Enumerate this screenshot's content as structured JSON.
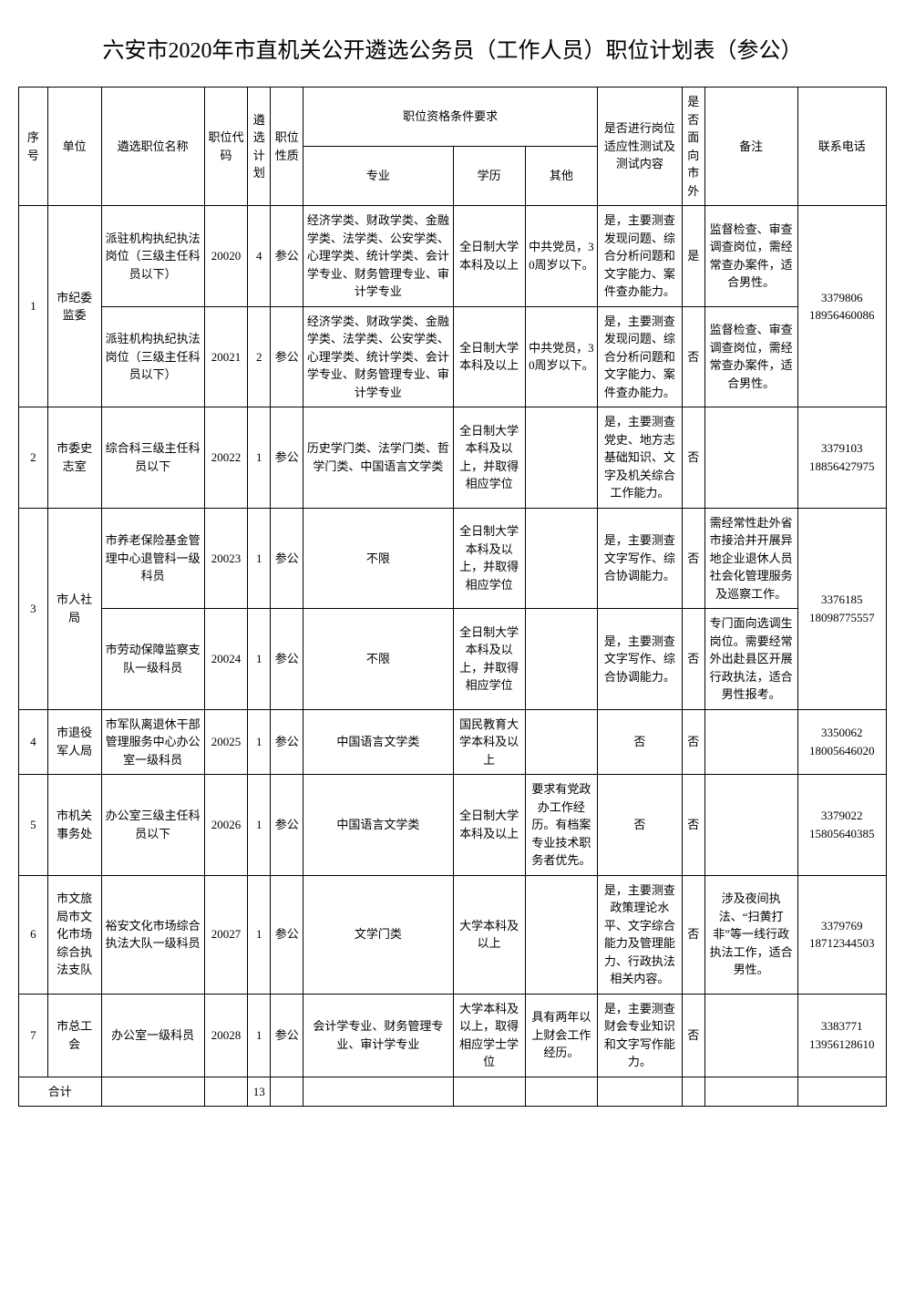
{
  "title": "六安市2020年市直机关公开遴选公务员（工作人员）职位计划表（参公）",
  "headers": {
    "seq": "序号",
    "unit": "单位",
    "position": "遴选职位名称",
    "code": "职位代码",
    "plan": "遴选计划",
    "nature": "职位性质",
    "qualGroup": "职位资格条件要求",
    "major": "专业",
    "edu": "学历",
    "other": "其他",
    "test": "是否进行岗位适应性测试及测试内容",
    "external": "是否面向市外",
    "remark": "备注",
    "phone": "联系电话"
  },
  "rows": [
    {
      "seq": "1",
      "unit": "市纪委监委",
      "unitRowspan": 2,
      "position": "派驻机构执纪执法岗位（三级主任科员以下）",
      "code": "20020",
      "plan": "4",
      "nature": "参公",
      "major": "经济学类、财政学类、金融学类、法学类、公安学类、心理学类、统计学类、会计学专业、财务管理专业、审计学专业",
      "edu": "全日制大学本科及以上",
      "other": "中共党员，30周岁以下。",
      "test": "是，主要测查发现问题、综合分析问题和文字能力、案件查办能力。",
      "external": "是",
      "remark": "监督检查、审查调查岗位，需经常查办案件，适合男性。",
      "phone": "3379806\n18956460086",
      "phoneRowspan": 2
    },
    {
      "position": "派驻机构执纪执法岗位（三级主任科员以下）",
      "code": "20021",
      "plan": "2",
      "nature": "参公",
      "major": "经济学类、财政学类、金融学类、法学类、公安学类、心理学类、统计学类、会计学专业、财务管理专业、审计学专业",
      "edu": "全日制大学本科及以上",
      "other": "中共党员，30周岁以下。",
      "test": "是，主要测查发现问题、综合分析问题和文字能力、案件查办能力。",
      "external": "否",
      "remark": "监督检查、审查调查岗位，需经常查办案件，适合男性。"
    },
    {
      "seq": "2",
      "unit": "市委史志室",
      "position": "综合科三级主任科员以下",
      "code": "20022",
      "plan": "1",
      "nature": "参公",
      "major": "历史学门类、法学门类、哲学门类、中国语言文学类",
      "edu": "全日制大学本科及以上，并取得相应学位",
      "other": "",
      "test": "是，主要测查党史、地方志基础知识、文字及机关综合工作能力。",
      "external": "否",
      "remark": "",
      "phone": "3379103\n18856427975"
    },
    {
      "seq": "3",
      "unit": "市人社局",
      "unitRowspan": 2,
      "position": "市养老保险基金管理中心退管科一级科员",
      "code": "20023",
      "plan": "1",
      "nature": "参公",
      "major": "不限",
      "edu": "全日制大学本科及以上，并取得相应学位",
      "other": "",
      "test": "是，主要测查文字写作、综合协调能力。",
      "external": "否",
      "remark": "需经常性赴外省市接洽并开展异地企业退休人员社会化管理服务及巡察工作。",
      "phone": "3376185\n18098775557",
      "phoneRowspan": 2
    },
    {
      "position": "市劳动保障监察支队一级科员",
      "code": "20024",
      "plan": "1",
      "nature": "参公",
      "major": "不限",
      "edu": "全日制大学本科及以上，并取得相应学位",
      "other": "",
      "test": "是，主要测查文字写作、综合协调能力。",
      "external": "否",
      "remark": "专门面向选调生岗位。需要经常外出赴县区开展行政执法，适合男性报考。"
    },
    {
      "seq": "4",
      "unit": "市退役军人局",
      "position": "市军队离退休干部管理服务中心办公室一级科员",
      "code": "20025",
      "plan": "1",
      "nature": "参公",
      "major": "中国语言文学类",
      "edu": "国民教育大学本科及以上",
      "other": "",
      "test": "否",
      "external": "否",
      "remark": "",
      "phone": "3350062\n18005646020"
    },
    {
      "seq": "5",
      "unit": "市机关事务处",
      "position": "办公室三级主任科员以下",
      "code": "20026",
      "plan": "1",
      "nature": "参公",
      "major": "中国语言文学类",
      "edu": "全日制大学本科及以上",
      "other": "要求有党政办工作经历。有档案专业技术职务者优先。",
      "test": "否",
      "external": "否",
      "remark": "",
      "phone": "3379022\n15805640385"
    },
    {
      "seq": "6",
      "unit": "市文旅局市文化市场综合执法支队",
      "position": "裕安文化市场综合执法大队一级科员",
      "code": "20027",
      "plan": "1",
      "nature": "参公",
      "major": "文学门类",
      "edu": "大学本科及以上",
      "other": "",
      "test": "是，主要测查政策理论水平、文字综合能力及管理能力、行政执法相关内容。",
      "external": "否",
      "remark": "涉及夜间执法、“扫黄打非”等一线行政执法工作，适合男性。",
      "phone": "3379769\n18712344503"
    },
    {
      "seq": "7",
      "unit": "市总工会",
      "position": "办公室一级科员",
      "code": "20028",
      "plan": "1",
      "nature": "参公",
      "major": "会计学专业、财务管理专业、审计学专业",
      "edu": "大学本科及以上，取得相应学士学位",
      "other": "具有两年以上财会工作经历。",
      "test": "是，主要测查财会专业知识和文字写作能力。",
      "external": "否",
      "remark": "",
      "phone": "3383771\n13956128610"
    }
  ],
  "footer": {
    "label": "合计",
    "total": "13"
  }
}
